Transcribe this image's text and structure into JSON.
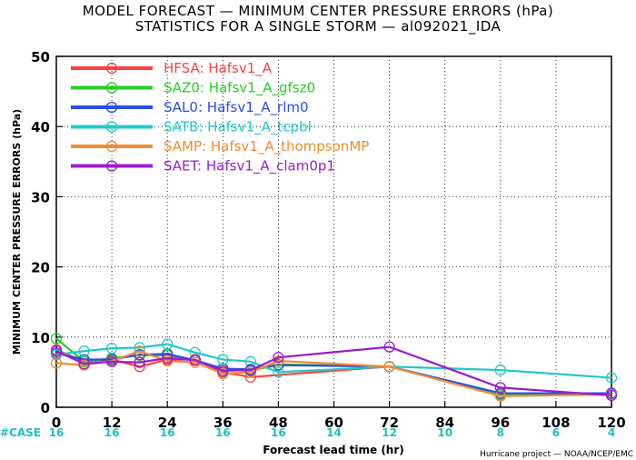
{
  "title_line1": "MODEL FORECAST — MINIMUM CENTER PRESSURE ERRORS (hPa)",
  "title_line2": "STATISTICS FOR A SINGLE STORM — al092021_IDA",
  "credit": "Hurricane project — NOAA/NCEP/EMC",
  "case_label": "#CASE",
  "chart_data": {
    "type": "line",
    "xlabel": "Forecast lead time (hr)",
    "ylabel": "MINIMUM CENTER PRESSURE ERRORS (hPa)",
    "xlim": [
      0,
      120
    ],
    "ylim": [
      0,
      50
    ],
    "x_ticks": [
      0,
      12,
      24,
      36,
      48,
      60,
      72,
      84,
      96,
      108,
      120
    ],
    "y_ticks": [
      0,
      10,
      20,
      30,
      40,
      50
    ],
    "case_counts": [
      16,
      16,
      16,
      16,
      16,
      14,
      12,
      10,
      8,
      6,
      4
    ],
    "legend_position": "top-left",
    "series": [
      {
        "name": "HFSA:  Hafsv1_A",
        "color": "#ff4040",
        "x": [
          0,
          6,
          12,
          18,
          24,
          30,
          36,
          42,
          72,
          96,
          120
        ],
        "y": [
          8.2,
          6.5,
          6.8,
          5.8,
          6.8,
          6.8,
          5.0,
          4.3,
          5.8,
          1.8,
          2.0
        ]
      },
      {
        "name": "SAZ0:  Hafsv1_A_gfsz0",
        "color": "#22d022",
        "x": [
          0,
          6,
          12,
          18,
          24,
          30,
          36,
          42,
          48,
          72,
          96,
          120
        ],
        "y": [
          9.8,
          6.5,
          7.0,
          7.4,
          7.4,
          6.7,
          5.5,
          5.2,
          6.1,
          5.8,
          1.8,
          1.9
        ]
      },
      {
        "name": "SAL0:  Hafsv1_A_rlm0",
        "color": "#2a4de8",
        "x": [
          0,
          6,
          12,
          18,
          24,
          30,
          36,
          42,
          48,
          72,
          96,
          120
        ],
        "y": [
          7.7,
          6.8,
          6.8,
          7.5,
          7.6,
          6.7,
          5.5,
          5.4,
          6.0,
          5.8,
          2.0,
          2.0
        ]
      },
      {
        "name": "SATB:  Hafsv1_A_tcpbl",
        "color": "#22c8c8",
        "x": [
          0,
          6,
          12,
          18,
          24,
          30,
          36,
          42,
          48,
          72,
          96,
          120
        ],
        "y": [
          7.5,
          8.0,
          8.4,
          8.5,
          9.0,
          7.8,
          6.8,
          6.5,
          5.0,
          5.8,
          5.3,
          4.2
        ]
      },
      {
        "name": "SAMP:  Hafsv1_A_thompsonMP",
        "color": "#f08c30",
        "x": [
          0,
          6,
          12,
          18,
          24,
          30,
          36,
          42,
          48,
          72,
          96,
          120
        ],
        "y": [
          6.3,
          6.0,
          6.6,
          8.0,
          6.6,
          6.4,
          4.8,
          5.0,
          6.6,
          5.8,
          1.6,
          1.8
        ]
      },
      {
        "name": "SAET:  Hafsv1_A_clam0p1",
        "color": "#9a1ccf",
        "x": [
          0,
          6,
          12,
          18,
          24,
          30,
          36,
          42,
          48,
          72,
          96,
          120
        ],
        "y": [
          8.0,
          6.2,
          6.5,
          6.4,
          7.0,
          6.7,
          5.2,
          5.3,
          7.1,
          8.6,
          2.8,
          1.7
        ]
      }
    ]
  }
}
